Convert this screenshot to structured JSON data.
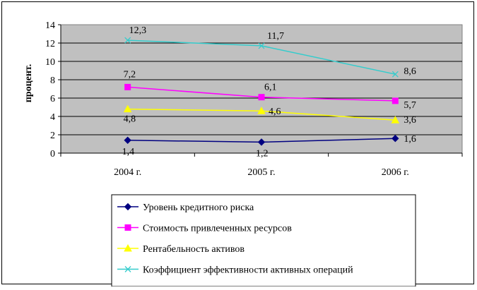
{
  "chart_data": {
    "type": "line",
    "categories": [
      "2004 г.",
      "2005 г.",
      "2006 г."
    ],
    "ylabel": "процент.",
    "ylim": [
      0,
      14
    ],
    "yticks": [
      0,
      2,
      4,
      6,
      8,
      10,
      12,
      14
    ],
    "grid": true,
    "legend_position": "bottom",
    "series": [
      {
        "name": "Уровень кредитного риска",
        "values": [
          1.4,
          1.2,
          1.6
        ],
        "labels": [
          "1,4",
          "1,2",
          "1,6"
        ],
        "color": "#000080",
        "marker": "diamond"
      },
      {
        "name": "Стоимость привлеченных ресурсов",
        "values": [
          7.2,
          6.1,
          5.7
        ],
        "labels": [
          "7,2",
          "6,1",
          "5,7"
        ],
        "color": "#FF00FF",
        "marker": "square"
      },
      {
        "name": "Рентабельность активов",
        "values": [
          4.8,
          4.6,
          3.6
        ],
        "labels": [
          "4,8",
          "4,6",
          "3,6"
        ],
        "color": "#FFFF00",
        "marker": "triangle"
      },
      {
        "name": "Коэффициент эффективности активных операций",
        "values": [
          12.3,
          11.7,
          8.6
        ],
        "labels": [
          "12,3",
          "11,7",
          "8,6"
        ],
        "color": "#33CCCC",
        "marker": "x"
      }
    ],
    "plot_background": "#C0C0C0"
  }
}
